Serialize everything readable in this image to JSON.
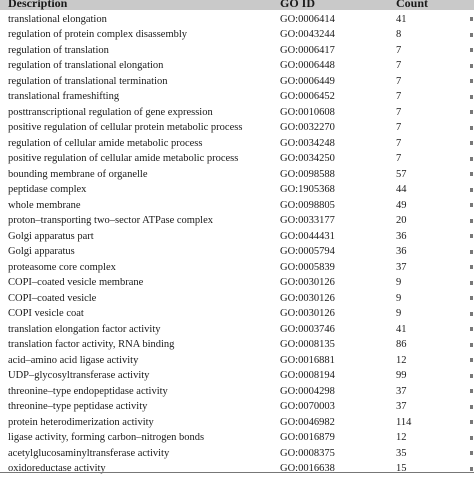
{
  "header": {
    "description": "Description",
    "go_id": "GO ID",
    "count": "Count"
  },
  "rows": [
    {
      "description": "translational elongation",
      "go_id": "GO:0006414",
      "count": "41"
    },
    {
      "description": "regulation of protein complex disassembly",
      "go_id": "GO:0043244",
      "count": "8"
    },
    {
      "description": "regulation of translation",
      "go_id": "GO:0006417",
      "count": "7"
    },
    {
      "description": "regulation of translational elongation",
      "go_id": "GO:0006448",
      "count": "7"
    },
    {
      "description": "regulation of translational termination",
      "go_id": "GO:0006449",
      "count": "7"
    },
    {
      "description": "translational frameshifting",
      "go_id": "GO:0006452",
      "count": "7"
    },
    {
      "description": "posttranscriptional regulation of gene expression",
      "go_id": "GO:0010608",
      "count": "7"
    },
    {
      "description": "positive regulation of cellular protein metabolic process",
      "go_id": "GO:0032270",
      "count": "7"
    },
    {
      "description": "regulation of cellular amide metabolic process",
      "go_id": "GO:0034248",
      "count": "7"
    },
    {
      "description": "positive regulation of cellular amide metabolic process",
      "go_id": "GO:0034250",
      "count": "7"
    },
    {
      "description": "bounding membrane of organelle",
      "go_id": "GO:0098588",
      "count": "57"
    },
    {
      "description": "peptidase complex",
      "go_id": "GO:1905368",
      "count": "44"
    },
    {
      "description": "whole membrane",
      "go_id": "GO:0098805",
      "count": "49"
    },
    {
      "description": "proton–transporting two–sector ATPase complex",
      "go_id": "GO:0033177",
      "count": "20"
    },
    {
      "description": "Golgi apparatus part",
      "go_id": "GO:0044431",
      "count": "36"
    },
    {
      "description": "Golgi apparatus",
      "go_id": "GO:0005794",
      "count": "36"
    },
    {
      "description": "proteasome core complex",
      "go_id": "GO:0005839",
      "count": "37"
    },
    {
      "description": "COPI–coated vesicle membrane",
      "go_id": "GO:0030126",
      "count": "9"
    },
    {
      "description": "COPI–coated vesicle",
      "go_id": "GO:0030126",
      "count": "9"
    },
    {
      "description": "COPI vesicle coat",
      "go_id": "GO:0030126",
      "count": "9"
    },
    {
      "description": "translation elongation factor activity",
      "go_id": "GO:0003746",
      "count": "41"
    },
    {
      "description": "translation factor activity, RNA binding",
      "go_id": "GO:0008135",
      "count": "86"
    },
    {
      "description": "acid–amino acid ligase activity",
      "go_id": "GO:0016881",
      "count": "12"
    },
    {
      "description": "UDP–glycosyltransferase activity",
      "go_id": "GO:0008194",
      "count": "99"
    },
    {
      "description": "threonine–type endopeptidase activity",
      "go_id": "GO:0004298",
      "count": "37"
    },
    {
      "description": "threonine–type peptidase activity",
      "go_id": "GO:0070003",
      "count": "37"
    },
    {
      "description": "protein heterodimerization activity",
      "go_id": "GO:0046982",
      "count": "114"
    },
    {
      "description": "ligase activity, forming carbon–nitrogen bonds",
      "go_id": "GO:0016879",
      "count": "12"
    },
    {
      "description": "acetylglucosaminyltransferase activity",
      "go_id": "GO:0008375",
      "count": "35"
    },
    {
      "description": "oxidoreductase activity",
      "go_id": "GO:0016638",
      "count": "15"
    }
  ]
}
